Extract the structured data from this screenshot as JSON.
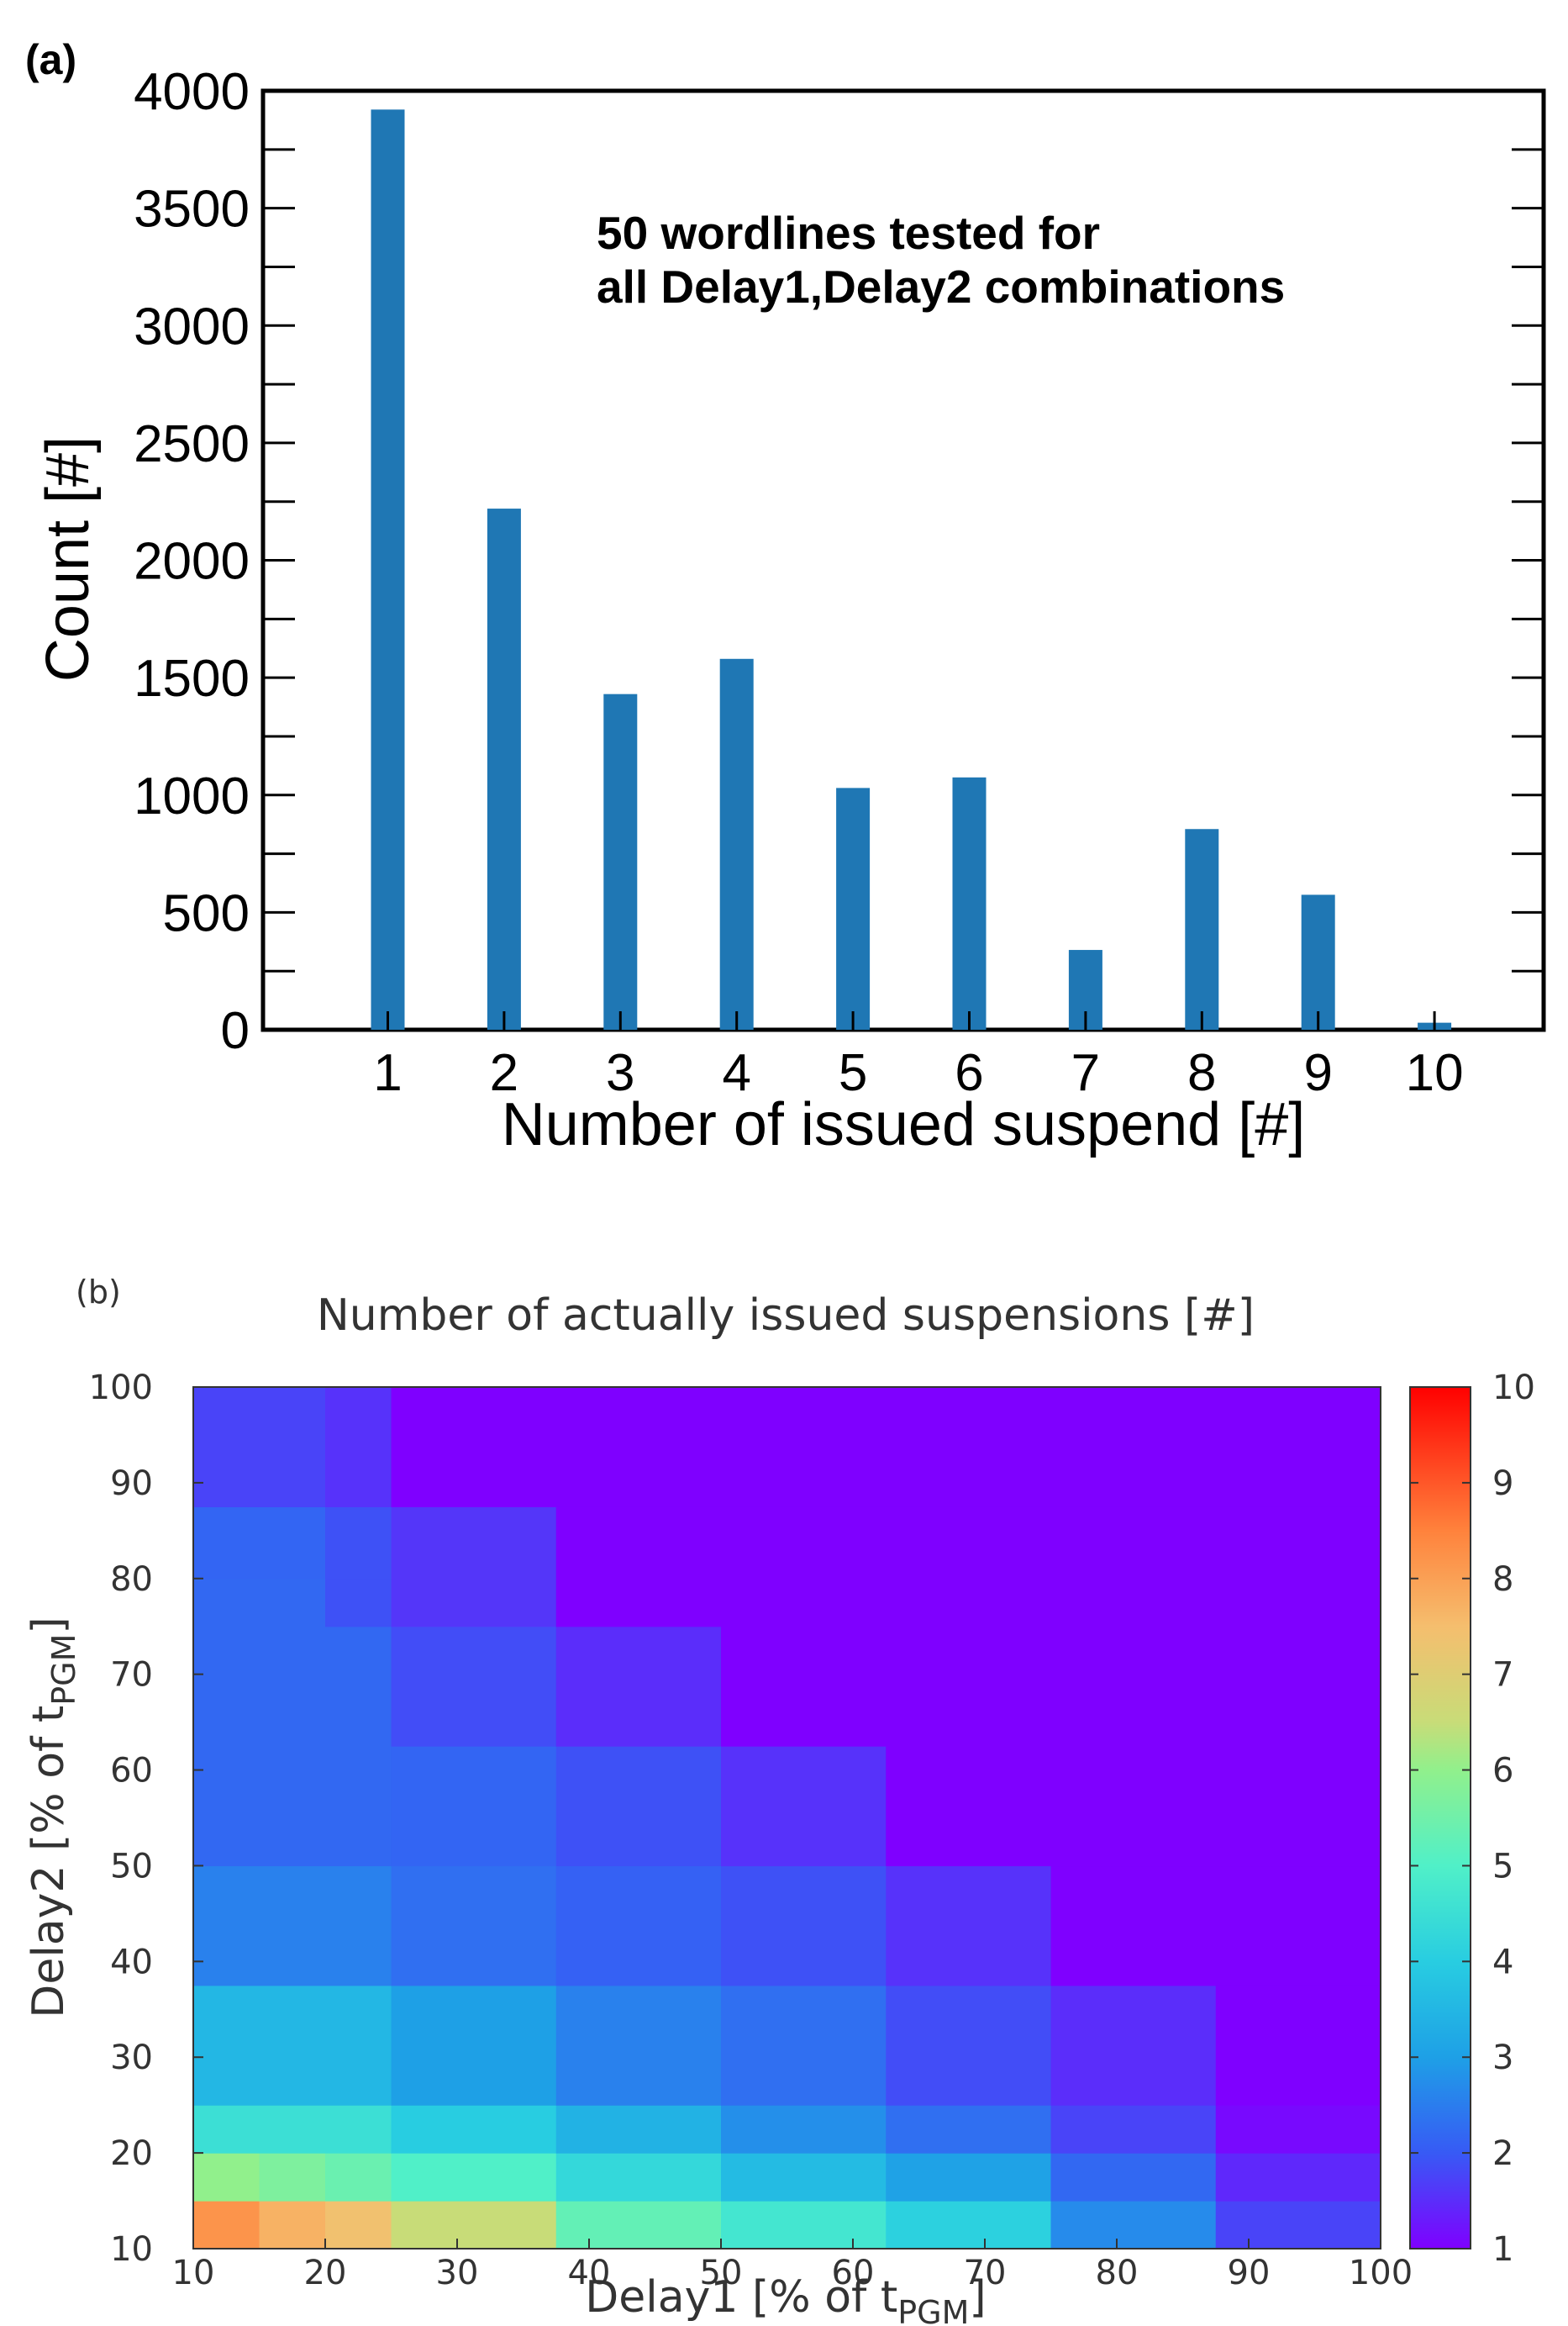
{
  "colors": {
    "bar": "#1f77b4",
    "axis": "#000000",
    "heat_text": "#333333"
  },
  "chart_data": [
    {
      "type": "bar",
      "panel_label": "(a)",
      "categories": [
        "1",
        "2",
        "3",
        "4",
        "5",
        "6",
        "7",
        "8",
        "9",
        "10"
      ],
      "values": [
        3920,
        2220,
        1430,
        1580,
        1030,
        1075,
        340,
        855,
        575,
        30
      ],
      "annotation": [
        "50 wordlines tested for",
        "all Delay1,Delay2 combinations"
      ],
      "xlabel": "Number of issued suspend [#]",
      "ylabel": "Count [#]",
      "ylim": [
        0,
        4000
      ],
      "yticks": [
        "0",
        "500",
        "1000",
        "1500",
        "2000",
        "2500",
        "3000",
        "3500",
        "4000"
      ],
      "grid": false
    },
    {
      "type": "heatmap",
      "panel_label": "(b)",
      "title": "Number of actually issued suspensions [#]",
      "xlabel": "Delay1 [% of t",
      "xlabel_sub": "PGM",
      "xlabel_end": "]",
      "ylabel": "Delay2 [% of t",
      "ylabel_sub": "PGM",
      "ylabel_end": "]",
      "xticks": [
        "10",
        "20",
        "30",
        "40",
        "50",
        "60",
        "70",
        "80",
        "90",
        "100"
      ],
      "yticks": [
        "10",
        "20",
        "30",
        "40",
        "50",
        "60",
        "70",
        "80",
        "90",
        "100"
      ],
      "colorbar_ticks": [
        "1",
        "2",
        "3",
        "4",
        "5",
        "6",
        "7",
        "8",
        "9",
        "10"
      ],
      "colorbar_range": [
        1,
        10
      ],
      "cells": [
        {
          "x": [
            10,
            15
          ],
          "y": [
            10,
            15
          ],
          "v": 8.2
        },
        {
          "x": [
            15,
            20
          ],
          "y": [
            10,
            15
          ],
          "v": 7.7
        },
        {
          "x": [
            20,
            25
          ],
          "y": [
            10,
            15
          ],
          "v": 7.4
        },
        {
          "x": [
            25,
            37.5
          ],
          "y": [
            10,
            15
          ],
          "v": 6.5
        },
        {
          "x": [
            37.5,
            50
          ],
          "y": [
            10,
            15
          ],
          "v": 5.3
        },
        {
          "x": [
            50,
            62.5
          ],
          "y": [
            10,
            15
          ],
          "v": 4.7
        },
        {
          "x": [
            62.5,
            75
          ],
          "y": [
            10,
            15
          ],
          "v": 4.1
        },
        {
          "x": [
            75,
            87.5
          ],
          "y": [
            10,
            15
          ],
          "v": 2.7
        },
        {
          "x": [
            87.5,
            100
          ],
          "y": [
            10,
            15
          ],
          "v": 1.75
        },
        {
          "x": [
            10,
            15
          ],
          "y": [
            15,
            20
          ],
          "v": 6.0
        },
        {
          "x": [
            15,
            20
          ],
          "y": [
            15,
            20
          ],
          "v": 5.7
        },
        {
          "x": [
            20,
            25
          ],
          "y": [
            15,
            20
          ],
          "v": 5.4
        },
        {
          "x": [
            25,
            37.5
          ],
          "y": [
            15,
            20
          ],
          "v": 5.0
        },
        {
          "x": [
            37.5,
            50
          ],
          "y": [
            15,
            20
          ],
          "v": 4.3
        },
        {
          "x": [
            50,
            62.5
          ],
          "y": [
            15,
            20
          ],
          "v": 3.6
        },
        {
          "x": [
            62.5,
            75
          ],
          "y": [
            15,
            20
          ],
          "v": 3.05
        },
        {
          "x": [
            75,
            87.5
          ],
          "y": [
            15,
            20
          ],
          "v": 2.2
        },
        {
          "x": [
            87.5,
            100
          ],
          "y": [
            15,
            20
          ],
          "v": 1.45
        },
        {
          "x": [
            10,
            25
          ],
          "y": [
            20,
            25
          ],
          "v": 4.5
        },
        {
          "x": [
            25,
            37.5
          ],
          "y": [
            20,
            25
          ],
          "v": 4.0
        },
        {
          "x": [
            37.5,
            50
          ],
          "y": [
            20,
            25
          ],
          "v": 3.4
        },
        {
          "x": [
            50,
            62.5
          ],
          "y": [
            20,
            25
          ],
          "v": 2.75
        },
        {
          "x": [
            62.5,
            75
          ],
          "y": [
            20,
            25
          ],
          "v": 2.3
        },
        {
          "x": [
            75,
            87.5
          ],
          "y": [
            20,
            25
          ],
          "v": 1.75
        },
        {
          "x": [
            87.5,
            100
          ],
          "y": [
            20,
            25
          ],
          "v": 1.1
        },
        {
          "x": [
            10,
            25
          ],
          "y": [
            25,
            37.5
          ],
          "v": 3.5
        },
        {
          "x": [
            25,
            37.5
          ],
          "y": [
            25,
            37.5
          ],
          "v": 3.0
        },
        {
          "x": [
            37.5,
            50
          ],
          "y": [
            25,
            37.5
          ],
          "v": 2.55
        },
        {
          "x": [
            50,
            62.5
          ],
          "y": [
            25,
            37.5
          ],
          "v": 2.3
        },
        {
          "x": [
            62.5,
            75
          ],
          "y": [
            25,
            37.5
          ],
          "v": 1.85
        },
        {
          "x": [
            75,
            87.5
          ],
          "y": [
            25,
            37.5
          ],
          "v": 1.5
        },
        {
          "x": [
            87.5,
            100
          ],
          "y": [
            25,
            37.5
          ],
          "v": 1.0
        },
        {
          "x": [
            10,
            25
          ],
          "y": [
            37.5,
            50
          ],
          "v": 2.55
        },
        {
          "x": [
            25,
            37.5
          ],
          "y": [
            37.5,
            50
          ],
          "v": 2.3
        },
        {
          "x": [
            37.5,
            50
          ],
          "y": [
            37.5,
            50
          ],
          "v": 2.1
        },
        {
          "x": [
            50,
            62.5
          ],
          "y": [
            37.5,
            50
          ],
          "v": 1.9
        },
        {
          "x": [
            62.5,
            75
          ],
          "y": [
            37.5,
            50
          ],
          "v": 1.55
        },
        {
          "x": [
            75,
            100
          ],
          "y": [
            37.5,
            50
          ],
          "v": 1.0
        },
        {
          "x": [
            10,
            25
          ],
          "y": [
            50,
            62.5
          ],
          "v": 2.2
        },
        {
          "x": [
            25,
            37.5
          ],
          "y": [
            50,
            62.5
          ],
          "v": 2.15
        },
        {
          "x": [
            37.5,
            50
          ],
          "y": [
            50,
            62.5
          ],
          "v": 1.9
        },
        {
          "x": [
            50,
            62.5
          ],
          "y": [
            50,
            62.5
          ],
          "v": 1.55
        },
        {
          "x": [
            62.5,
            100
          ],
          "y": [
            50,
            62.5
          ],
          "v": 1.0
        },
        {
          "x": [
            10,
            25
          ],
          "y": [
            62.5,
            75
          ],
          "v": 2.2
        },
        {
          "x": [
            25,
            37.5
          ],
          "y": [
            62.5,
            75
          ],
          "v": 1.85
        },
        {
          "x": [
            37.5,
            50
          ],
          "y": [
            62.5,
            75
          ],
          "v": 1.5
        },
        {
          "x": [
            50,
            100
          ],
          "y": [
            62.5,
            75
          ],
          "v": 1.0
        },
        {
          "x": [
            10,
            20
          ],
          "y": [
            75,
            80
          ],
          "v": 2.2
        },
        {
          "x": [
            20,
            25
          ],
          "y": [
            75,
            80
          ],
          "v": 1.9
        },
        {
          "x": [
            25,
            37.5
          ],
          "y": [
            75,
            80
          ],
          "v": 1.6
        },
        {
          "x": [
            37.5,
            100
          ],
          "y": [
            75,
            80
          ],
          "v": 1.0
        },
        {
          "x": [
            10,
            20
          ],
          "y": [
            80,
            87.5
          ],
          "v": 2.15
        },
        {
          "x": [
            20,
            25
          ],
          "y": [
            80,
            87.5
          ],
          "v": 1.9
        },
        {
          "x": [
            25,
            37.5
          ],
          "y": [
            80,
            87.5
          ],
          "v": 1.6
        },
        {
          "x": [
            37.5,
            100
          ],
          "y": [
            80,
            87.5
          ],
          "v": 1.0
        },
        {
          "x": [
            10,
            20
          ],
          "y": [
            87.5,
            100
          ],
          "v": 1.75
        },
        {
          "x": [
            20,
            25
          ],
          "y": [
            87.5,
            100
          ],
          "v": 1.55
        },
        {
          "x": [
            25,
            100
          ],
          "y": [
            87.5,
            100
          ],
          "v": 1.0
        }
      ]
    }
  ]
}
